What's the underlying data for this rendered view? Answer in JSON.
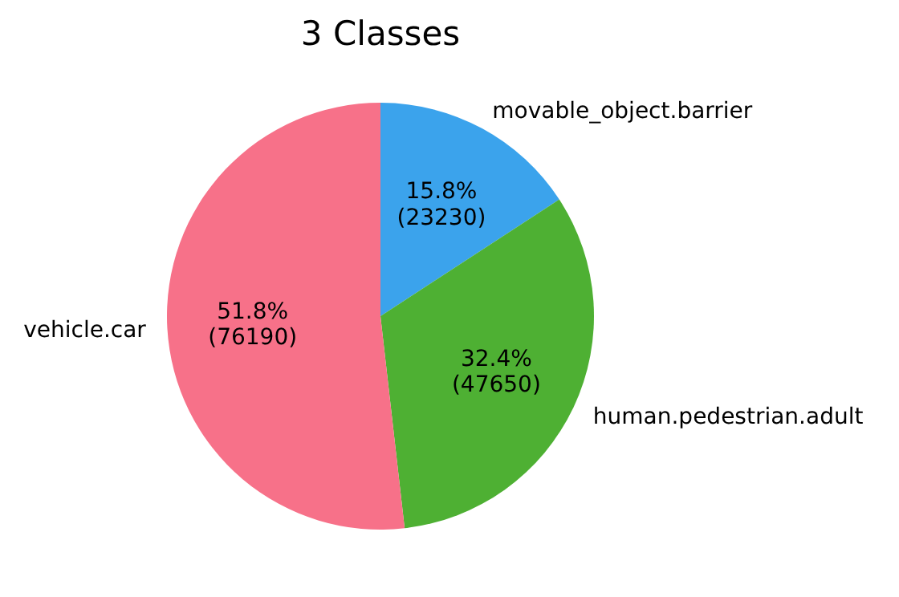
{
  "chart_data": {
    "type": "pie",
    "title": "3 Classes",
    "categories": [
      "movable_object.barrier",
      "human.pedestrian.adult",
      "vehicle.car"
    ],
    "values": [
      23230,
      47650,
      76190
    ],
    "colors": [
      "#3ba3ec",
      "#4eb033",
      "#f77189"
    ],
    "value_labels": [
      "15.8%\n(23230)",
      "32.4%\n(47650)",
      "51.8%\n(76190)"
    ]
  }
}
